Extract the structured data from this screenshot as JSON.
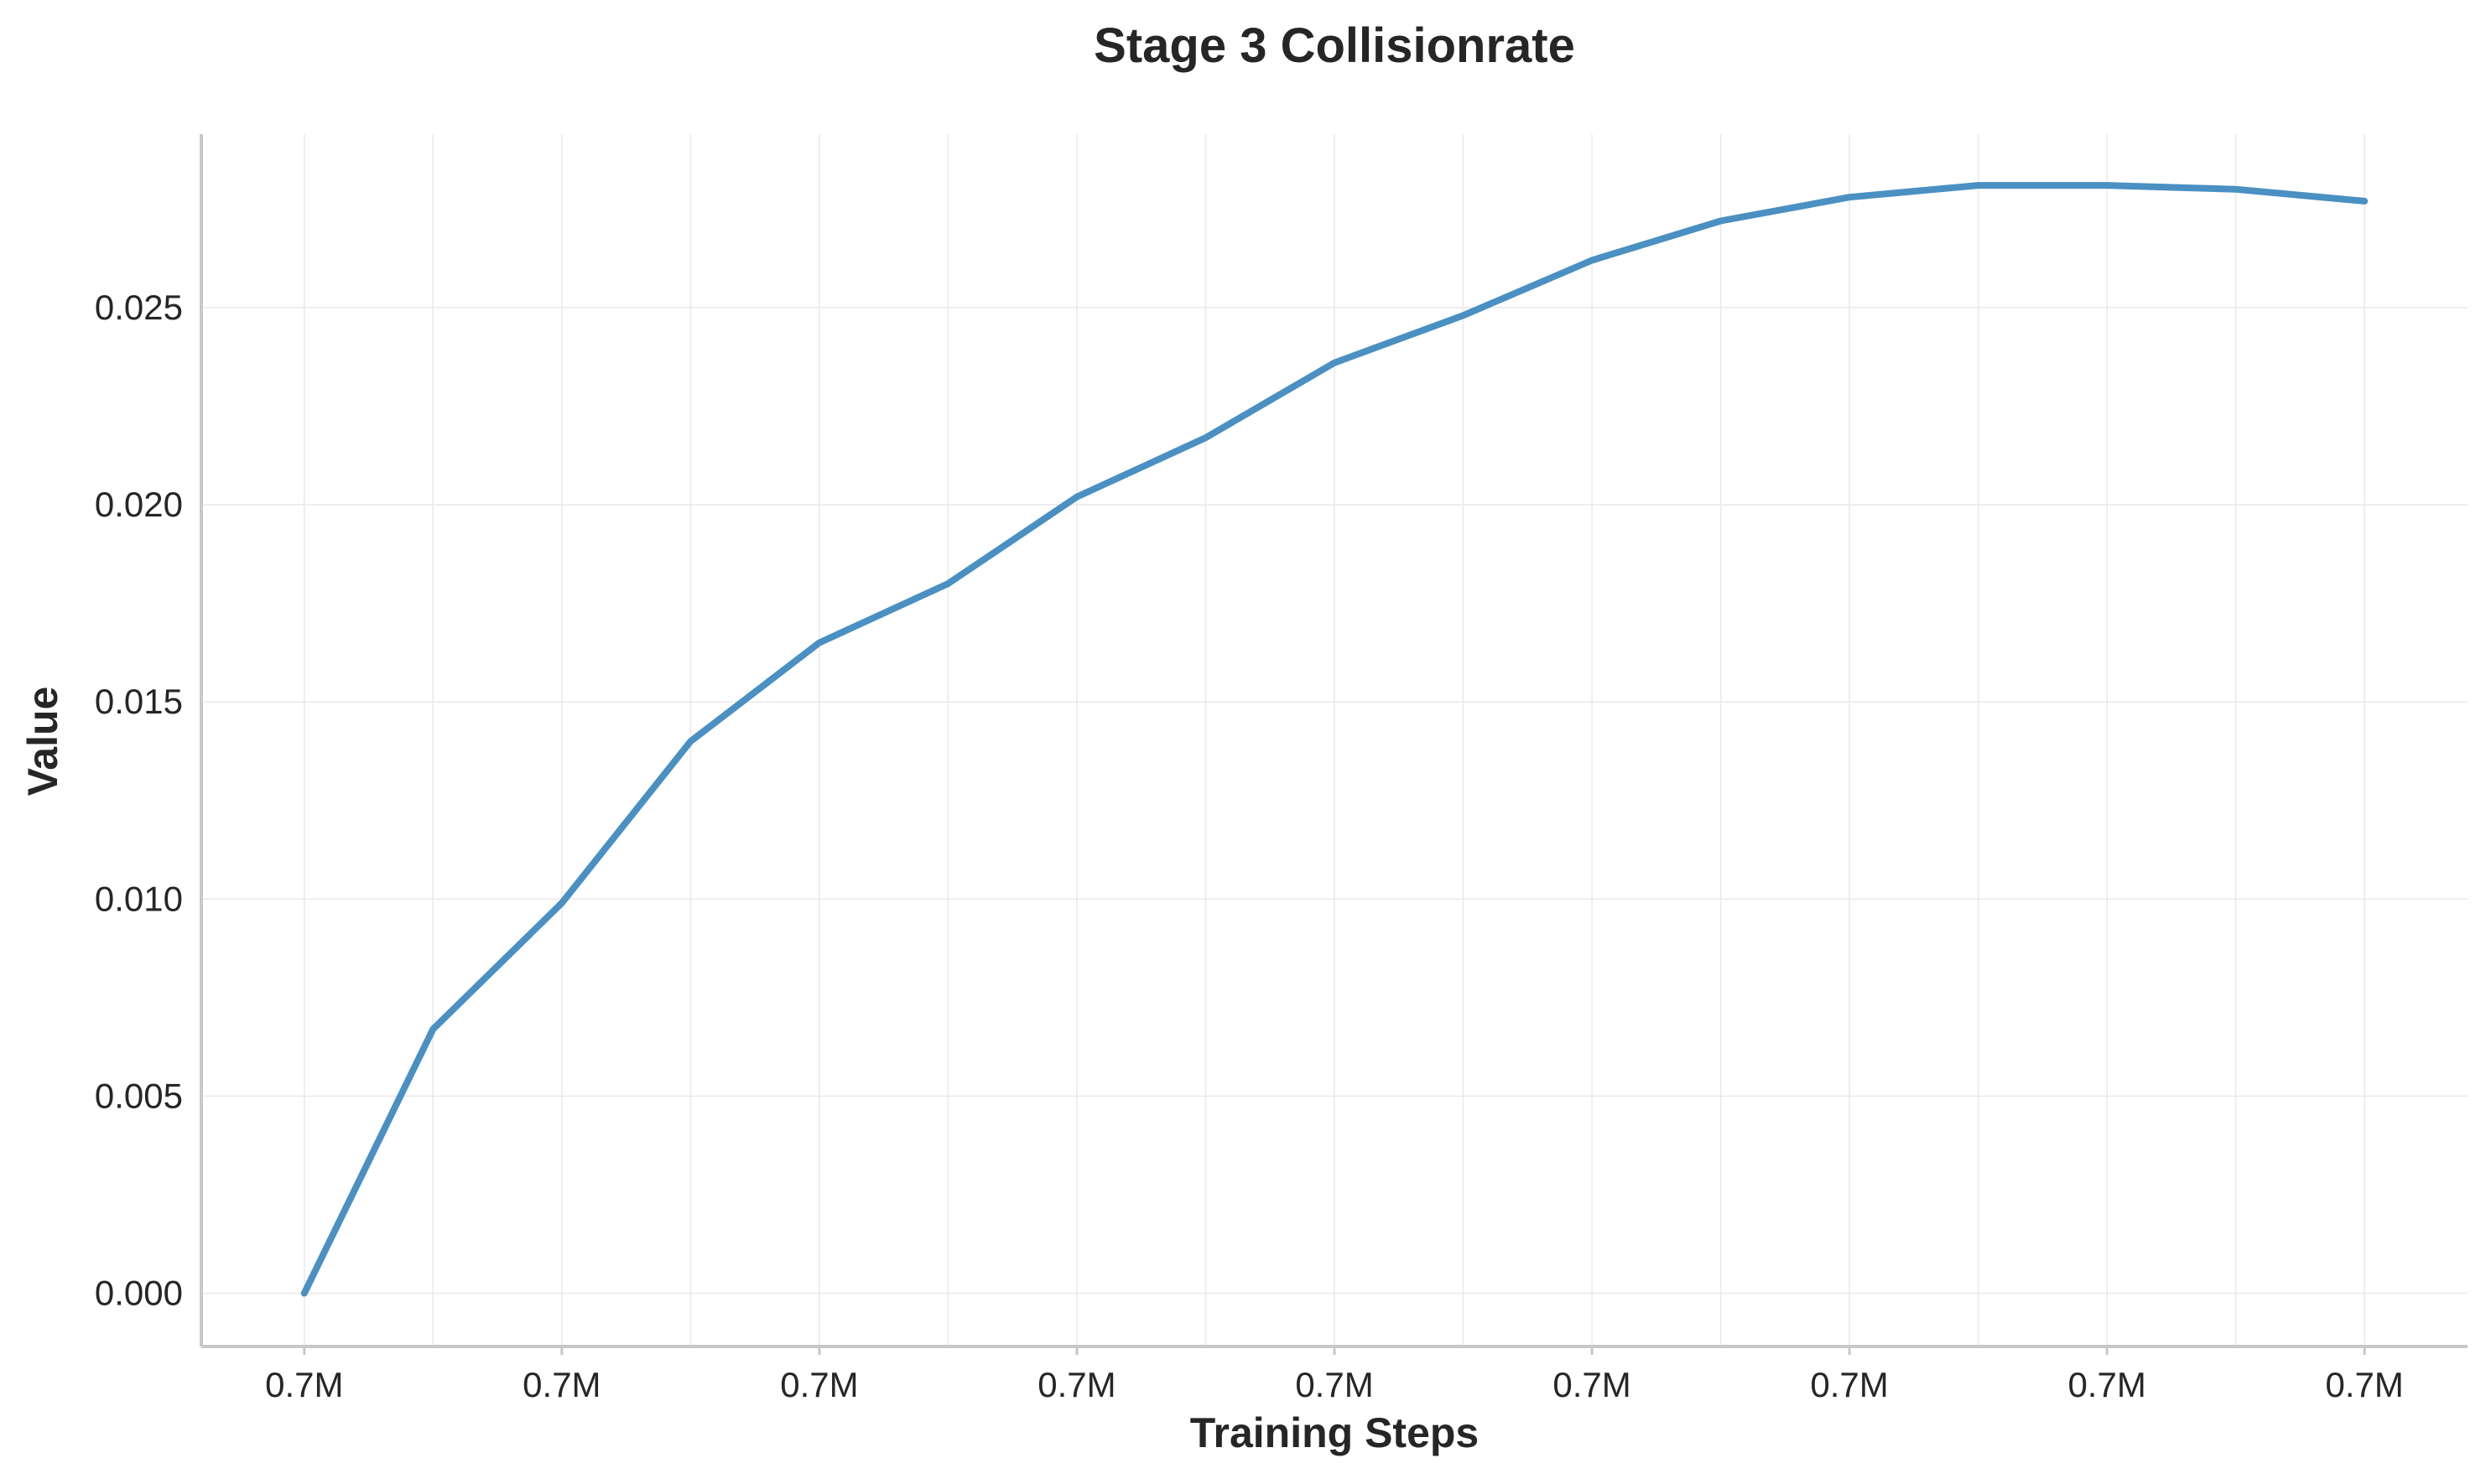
{
  "chart_data": {
    "type": "line",
    "title": "Stage 3 Collisionrate",
    "xlabel": "Training Steps",
    "ylabel": "Value",
    "x_tick_labels": [
      "0.7M",
      "0.7M",
      "0.7M",
      "0.7M",
      "0.7M",
      "0.7M",
      "0.7M",
      "0.7M",
      "0.7M"
    ],
    "y_tick_labels": [
      "0.000",
      "0.005",
      "0.010",
      "0.015",
      "0.020",
      "0.025"
    ],
    "y_ticks": [
      0.0,
      0.005,
      0.01,
      0.015,
      0.02,
      0.025
    ],
    "ylim": [
      -0.00135,
      0.0294
    ],
    "grid": true,
    "series": [
      {
        "color": "#4a90c2",
        "x": [
          0,
          0.5,
          1,
          1.5,
          2,
          2.5,
          3,
          3.5,
          4,
          4.5,
          5,
          5.5,
          6,
          6.5,
          7,
          7.5,
          8
        ],
        "values": [
          0.0,
          0.0067,
          0.0099,
          0.014,
          0.0165,
          0.018,
          0.0202,
          0.0217,
          0.0236,
          0.0248,
          0.0262,
          0.0272,
          0.0278,
          0.0281,
          0.0281,
          0.028,
          0.0277
        ]
      }
    ]
  }
}
